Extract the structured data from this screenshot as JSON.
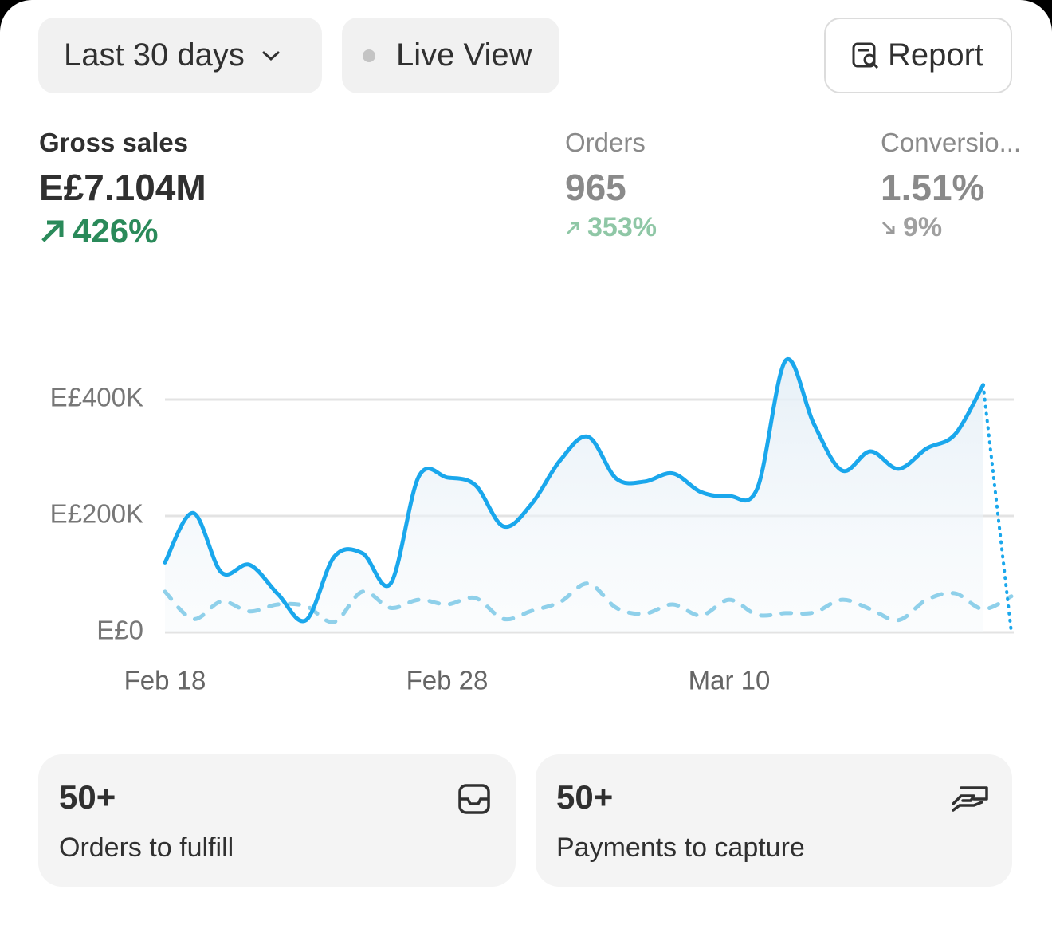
{
  "controls": {
    "date_range": "Last 30 days",
    "live_view": "Live View",
    "report": "Report"
  },
  "metrics": [
    {
      "label": "Gross sales",
      "value": "E£7.104M",
      "change": "426%"
    },
    {
      "label": "Orders",
      "value": "965",
      "change": "353%"
    },
    {
      "label": "Conversio...",
      "value": "1.51%",
      "change": "9%"
    }
  ],
  "chart_data": {
    "type": "line",
    "categories": [
      "Feb 18",
      null,
      null,
      null,
      null,
      null,
      null,
      null,
      null,
      null,
      "Feb 28",
      null,
      null,
      null,
      null,
      null,
      null,
      null,
      null,
      null,
      "Mar 10",
      null,
      null,
      null,
      null,
      null,
      null,
      null,
      null,
      null,
      null
    ],
    "series": [
      {
        "color": "#1aa7ec",
        "values": [
          120000,
          205000,
          103000,
          116000,
          66000,
          21000,
          130000,
          136000,
          84000,
          268000,
          266000,
          253000,
          182000,
          221000,
          295000,
          336000,
          264000,
          259000,
          273000,
          241000,
          234000,
          248000,
          467000,
          358000,
          278000,
          311000,
          281000,
          316000,
          340000,
          425000,
          0
        ]
      },
      {
        "color": "#8fd0ea",
        "values": [
          70000,
          23000,
          53000,
          36000,
          48000,
          45000,
          18000,
          70000,
          42000,
          56000,
          48000,
          59000,
          23000,
          37000,
          52000,
          84000,
          42000,
          32000,
          48000,
          29000,
          56000,
          30000,
          33000,
          34000,
          56000,
          40000,
          21000,
          56000,
          67000,
          40000,
          62000
        ]
      }
    ],
    "ylim": [
      0,
      500000
    ],
    "yticks": [
      {
        "value": 0,
        "label": "E£0"
      },
      {
        "value": 200000,
        "label": "E£200K"
      },
      {
        "value": 400000,
        "label": "E£400K"
      }
    ],
    "grid": true
  },
  "tiles": [
    {
      "count": "50+",
      "label": "Orders to fulfill"
    },
    {
      "count": "50+",
      "label": "Payments to capture"
    }
  ]
}
